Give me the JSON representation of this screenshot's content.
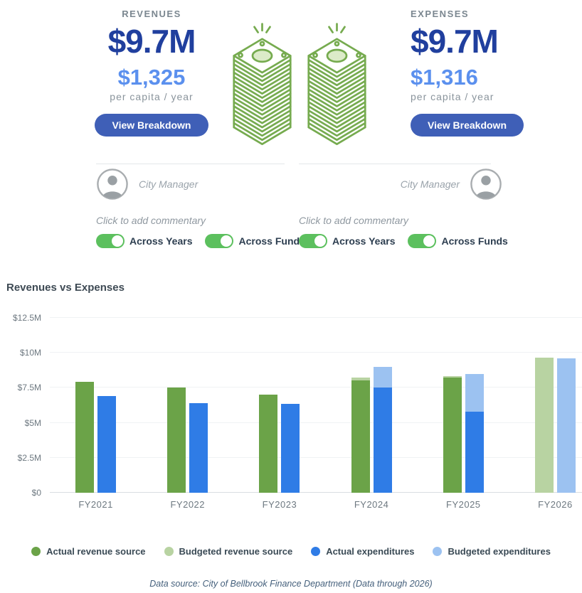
{
  "summary": {
    "revenues": {
      "label": "REVENUES",
      "total": "$9.7M",
      "per_capita": "$1,325",
      "caption": "per capita / year",
      "button": "View Breakdown"
    },
    "expenses": {
      "label": "EXPENSES",
      "total": "$9.7M",
      "per_capita": "$1,316",
      "caption": "per capita / year",
      "button": "View Breakdown"
    }
  },
  "commentary": {
    "author_role": "City Manager",
    "placeholder": "Click to add commentary",
    "toggles": [
      {
        "label": "Across Years",
        "on": true
      },
      {
        "label": "Across Funds",
        "on": true
      }
    ]
  },
  "chart_data": {
    "type": "bar",
    "title": "Revenues vs Expenses",
    "categories": [
      "FY2021",
      "FY2022",
      "FY2023",
      "FY2024",
      "FY2025",
      "FY2026"
    ],
    "unit": "USD millions",
    "ylim": [
      0,
      12.5
    ],
    "grid": true,
    "legend_position": "bottom",
    "y_ticks": [
      {
        "label": "$12.5M",
        "value": 12.5
      },
      {
        "label": "$10M",
        "value": 10
      },
      {
        "label": "$7.5M",
        "value": 7.5
      },
      {
        "label": "$5M",
        "value": 5
      },
      {
        "label": "$2.5M",
        "value": 2.5
      },
      {
        "label": "$0",
        "value": 0
      }
    ],
    "series": [
      {
        "name": "Actual revenue source",
        "color": "#6ba348",
        "values": [
          7.9,
          7.5,
          7.0,
          8.0,
          8.2,
          null
        ]
      },
      {
        "name": "Budgeted revenue source",
        "color": "#b8d3a2",
        "values": [
          null,
          null,
          null,
          8.2,
          8.35,
          9.67
        ]
      },
      {
        "name": "Actual expenditures",
        "color": "#2f7ce6",
        "values": [
          6.9,
          6.4,
          6.35,
          7.5,
          5.8,
          null
        ]
      },
      {
        "name": "Budgeted expenditures",
        "color": "#9cc2f1",
        "values": [
          null,
          null,
          null,
          9.0,
          8.5,
          9.61
        ]
      }
    ]
  },
  "footer": {
    "source_note": "Data source: City of Bellbrook Finance Department (Data through 2026)"
  },
  "colors": {
    "headline_blue": "#203f9e",
    "per_capita_blue": "#5b90ee",
    "button_blue": "#3f5fb7",
    "toggle_green": "#5cc05e",
    "icon_green": "#76ab4f"
  },
  "icons": {
    "money_stack": "money-stack-icon",
    "avatar": "person-icon",
    "toggle": "toggle-switch"
  }
}
